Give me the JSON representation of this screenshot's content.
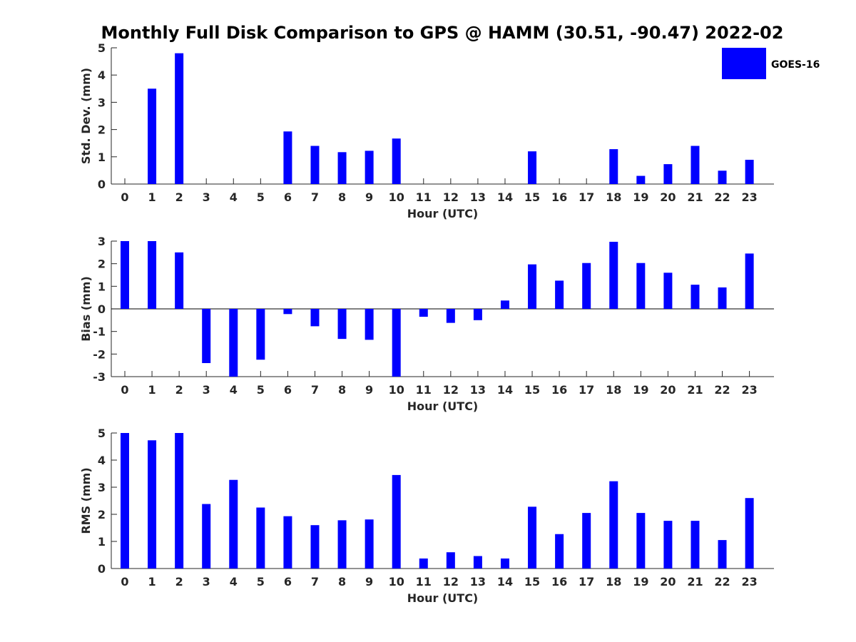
{
  "figure_title": "Monthly Full Disk Comparison to GPS @ HAMM (30.51, -90.47) 2022-02",
  "legend": {
    "label": "GOES-16",
    "color": "#0000ff"
  },
  "bar_color": "#0000ff",
  "chart_data": [
    {
      "type": "bar",
      "title": "",
      "xlabel": "Hour (UTC)",
      "ylabel": "Std. Dev. (mm)",
      "categories": [
        "0",
        "1",
        "2",
        "3",
        "4",
        "5",
        "6",
        "7",
        "8",
        "9",
        "10",
        "11",
        "12",
        "13",
        "14",
        "15",
        "16",
        "17",
        "18",
        "19",
        "20",
        "21",
        "22",
        "23"
      ],
      "values": [
        null,
        3.5,
        4.8,
        null,
        null,
        null,
        1.93,
        1.4,
        1.17,
        1.22,
        1.67,
        null,
        null,
        null,
        null,
        1.2,
        null,
        null,
        1.28,
        0.3,
        0.73,
        1.4,
        0.49,
        0.89
      ],
      "ylim": [
        0,
        5
      ],
      "yticks": [
        "0",
        "1",
        "2",
        "3",
        "4",
        "5"
      ]
    },
    {
      "type": "bar",
      "title": "",
      "xlabel": "Hour (UTC)",
      "ylabel": "Bias (mm)",
      "categories": [
        "0",
        "1",
        "2",
        "3",
        "4",
        "5",
        "6",
        "7",
        "8",
        "9",
        "10",
        "11",
        "12",
        "13",
        "14",
        "15",
        "16",
        "17",
        "18",
        "19",
        "20",
        "21",
        "22",
        "23"
      ],
      "values": [
        3.0,
        3.0,
        2.5,
        -2.4,
        -3.0,
        -2.25,
        -0.23,
        -0.77,
        -1.33,
        -1.37,
        -3.0,
        -0.35,
        -0.62,
        -0.5,
        0.37,
        1.97,
        1.25,
        2.03,
        2.97,
        2.03,
        1.6,
        1.07,
        0.95,
        2.45
      ],
      "ylim": [
        -3,
        3
      ],
      "yticks": [
        "-3",
        "-2",
        "-1",
        "0",
        "1",
        "2",
        "3"
      ],
      "zero_line": true
    },
    {
      "type": "bar",
      "title": "",
      "xlabel": "Hour (UTC)",
      "ylabel": "RMS (mm)",
      "categories": [
        "0",
        "1",
        "2",
        "3",
        "4",
        "5",
        "6",
        "7",
        "8",
        "9",
        "10",
        "11",
        "12",
        "13",
        "14",
        "15",
        "16",
        "17",
        "18",
        "19",
        "20",
        "21",
        "22",
        "23"
      ],
      "values": [
        5.0,
        4.73,
        5.0,
        2.38,
        3.27,
        2.25,
        1.93,
        1.6,
        1.78,
        1.81,
        3.45,
        0.37,
        0.6,
        0.46,
        0.37,
        2.28,
        1.27,
        2.05,
        3.22,
        2.05,
        1.76,
        1.76,
        1.05,
        2.6
      ],
      "ylim": [
        0,
        5
      ],
      "yticks": [
        "0",
        "1",
        "2",
        "3",
        "4",
        "5"
      ]
    }
  ]
}
